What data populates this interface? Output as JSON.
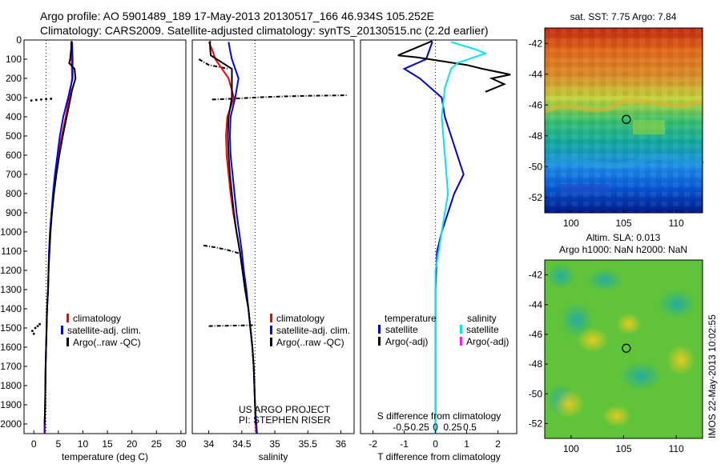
{
  "header": {
    "line1": "Argo profile: AO 5901489_189 17-May-2013 20130517_166 46.934S 105.252E",
    "line2": "Climatology: CARS2009. Satellite-adjusted climatology: synTS_20130515.nc (2.2d earlier)"
  },
  "side_stamp": "IMOS 22-May-2013 10:02:55",
  "chart_data": [
    {
      "type": "line",
      "id": "temperature-panel",
      "xlabel": "temperature (deg C)",
      "xlim": [
        -2,
        31
      ],
      "xticks": [
        0,
        5,
        10,
        15,
        20,
        25,
        30
      ],
      "ylim": [
        0,
        2050
      ],
      "yticks": [
        0,
        100,
        200,
        300,
        400,
        500,
        600,
        700,
        800,
        900,
        1000,
        1100,
        1200,
        1300,
        1400,
        1500,
        1600,
        1700,
        1800,
        1900,
        2000
      ],
      "y_reversed": true,
      "legend": [
        "climatology",
        "satellite-adj. clim.",
        "Argo(..raw -QC)"
      ],
      "reference_line_x": 2.5,
      "series": [
        {
          "name": "climatology",
          "color": "#ff0000",
          "points": [
            [
              7.6,
              10
            ],
            [
              7.7,
              100
            ],
            [
              7.8,
              200
            ],
            [
              7.2,
              300
            ],
            [
              6.5,
              400
            ],
            [
              5.7,
              500
            ],
            [
              5.0,
              600
            ],
            [
              4.5,
              700
            ],
            [
              4.0,
              800
            ],
            [
              3.6,
              900
            ],
            [
              3.3,
              1000
            ],
            [
              3.1,
              1100
            ],
            [
              3.0,
              1200
            ],
            [
              2.9,
              1300
            ],
            [
              2.7,
              1400
            ],
            [
              2.6,
              1500
            ],
            [
              2.5,
              1600
            ],
            [
              2.4,
              1700
            ],
            [
              2.35,
              1800
            ],
            [
              2.3,
              1900
            ],
            [
              2.2,
              2000
            ],
            [
              2.2,
              2050
            ]
          ]
        },
        {
          "name": "satellite-adj. clim.",
          "color": "#0000ff",
          "points": [
            [
              7.8,
              10
            ],
            [
              7.9,
              100
            ],
            [
              7.9,
              200
            ],
            [
              7.0,
              300
            ],
            [
              6.0,
              400
            ],
            [
              5.3,
              500
            ],
            [
              4.8,
              600
            ],
            [
              4.3,
              700
            ],
            [
              3.9,
              800
            ],
            [
              3.6,
              900
            ],
            [
              3.3,
              1000
            ],
            [
              3.1,
              1100
            ],
            [
              3.0,
              1200
            ],
            [
              2.9,
              1300
            ],
            [
              2.7,
              1400
            ],
            [
              2.6,
              1500
            ],
            [
              2.5,
              1600
            ],
            [
              2.4,
              1700
            ],
            [
              2.35,
              1800
            ],
            [
              2.3,
              1900
            ],
            [
              2.2,
              2000
            ],
            [
              2.2,
              2050
            ]
          ]
        },
        {
          "name": "Argo(..raw -QC)",
          "color": "#000000",
          "points": [
            [
              7.7,
              5
            ],
            [
              7.6,
              50
            ],
            [
              7.4,
              100
            ],
            [
              7.2,
              120
            ],
            [
              8.3,
              150
            ],
            [
              8.5,
              200
            ],
            [
              7.8,
              260
            ],
            [
              7.5,
              300
            ],
            [
              6.7,
              400
            ],
            [
              5.9,
              500
            ],
            [
              5.2,
              600
            ],
            [
              4.6,
              700
            ],
            [
              4.1,
              800
            ],
            [
              3.7,
              900
            ],
            [
              3.4,
              1000
            ],
            [
              3.2,
              1100
            ],
            [
              3.0,
              1200
            ],
            [
              2.9,
              1300
            ],
            [
              2.7,
              1400
            ],
            [
              2.6,
              1500
            ],
            [
              2.5,
              1600
            ],
            [
              2.4,
              1700
            ],
            [
              2.35,
              1800
            ],
            [
              2.3,
              1900
            ],
            [
              2.2,
              2000
            ]
          ]
        }
      ],
      "flagged_points": [
        [
          -0.5,
          315
        ],
        [
          0.5,
          312
        ],
        [
          1.5,
          310
        ],
        [
          2.5,
          308
        ],
        [
          3.5,
          306
        ],
        [
          -0.3,
          1515
        ],
        [
          0.3,
          1500
        ],
        [
          0.8,
          1490
        ],
        [
          1.2,
          1480
        ],
        [
          0.0,
          1530
        ]
      ]
    },
    {
      "type": "line",
      "id": "salinity-panel",
      "xlabel": "salinity",
      "xlim": [
        33.75,
        36.2
      ],
      "xticks": [
        34,
        34.5,
        35,
        35.5,
        36
      ],
      "ylim": [
        0,
        2050
      ],
      "y_reversed": true,
      "legend": [
        "climatology",
        "satellite-adj. clim.",
        "Argo(..raw -QC)"
      ],
      "reference_line_x": 34.7,
      "annotations": [
        "US ARGO PROJECT",
        "PI: STEPHEN RISER"
      ],
      "series": [
        {
          "name": "climatology",
          "color": "#ff0000",
          "points": [
            [
              34.0,
              10
            ],
            [
              34.05,
              50
            ],
            [
              34.1,
              100
            ],
            [
              34.3,
              200
            ],
            [
              34.38,
              300
            ],
            [
              34.28,
              400
            ],
            [
              34.26,
              500
            ],
            [
              34.27,
              600
            ],
            [
              34.3,
              700
            ],
            [
              34.33,
              800
            ],
            [
              34.37,
              900
            ],
            [
              34.42,
              1000
            ],
            [
              34.47,
              1100
            ],
            [
              34.51,
              1200
            ],
            [
              34.55,
              1300
            ],
            [
              34.6,
              1400
            ],
            [
              34.63,
              1500
            ],
            [
              34.66,
              1600
            ],
            [
              34.68,
              1700
            ],
            [
              34.69,
              1800
            ],
            [
              34.7,
              1900
            ],
            [
              34.71,
              2000
            ],
            [
              34.72,
              2050
            ]
          ]
        },
        {
          "name": "satellite-adj. clim.",
          "color": "#0000ff",
          "points": [
            [
              34.3,
              10
            ],
            [
              34.32,
              50
            ],
            [
              34.35,
              100
            ],
            [
              34.45,
              200
            ],
            [
              34.4,
              300
            ],
            [
              34.33,
              400
            ],
            [
              34.32,
              500
            ],
            [
              34.33,
              600
            ],
            [
              34.36,
              700
            ],
            [
              34.39,
              800
            ],
            [
              34.42,
              900
            ],
            [
              34.46,
              1000
            ],
            [
              34.5,
              1100
            ],
            [
              34.53,
              1200
            ],
            [
              34.57,
              1300
            ],
            [
              34.6,
              1400
            ],
            [
              34.63,
              1500
            ],
            [
              34.66,
              1600
            ],
            [
              34.68,
              1700
            ],
            [
              34.69,
              1800
            ],
            [
              34.7,
              1900
            ],
            [
              34.72,
              2000
            ],
            [
              34.73,
              2050
            ]
          ]
        },
        {
          "name": "Argo(..raw -QC)",
          "color": "#000000",
          "points": [
            [
              34.02,
              5
            ],
            [
              34.02,
              40
            ],
            [
              34.03,
              80
            ],
            [
              34.35,
              150
            ],
            [
              34.35,
              300
            ],
            [
              34.3,
              400
            ],
            [
              34.29,
              500
            ],
            [
              34.3,
              600
            ],
            [
              34.32,
              700
            ],
            [
              34.35,
              800
            ],
            [
              34.38,
              900
            ],
            [
              34.42,
              1000
            ],
            [
              34.47,
              1100
            ],
            [
              34.51,
              1200
            ],
            [
              34.55,
              1300
            ],
            [
              34.6,
              1400
            ],
            [
              34.63,
              1500
            ],
            [
              34.66,
              1600
            ],
            [
              34.68,
              1700
            ],
            [
              34.69,
              1800
            ],
            [
              34.7,
              1900
            ],
            [
              34.71,
              2000
            ]
          ]
        }
      ],
      "flagged_lines": [
        {
          "points": [
            [
              33.85,
              100
            ],
            [
              34.0,
              130
            ],
            [
              34.15,
              140
            ],
            [
              34.3,
              150
            ]
          ]
        },
        {
          "points": [
            [
              34.05,
              310
            ],
            [
              34.4,
              305
            ],
            [
              34.8,
              298
            ],
            [
              35.2,
              293
            ],
            [
              35.6,
              290
            ],
            [
              36.1,
              288
            ]
          ]
        },
        {
          "points": [
            [
              33.92,
              1070
            ],
            [
              34.1,
              1080
            ],
            [
              34.3,
              1095
            ],
            [
              34.45,
              1110
            ]
          ]
        },
        {
          "points": [
            [
              34.0,
              1490
            ],
            [
              34.3,
              1488
            ],
            [
              34.6,
              1486
            ],
            [
              34.7,
              1485
            ]
          ]
        }
      ]
    },
    {
      "type": "line",
      "id": "difference-panel",
      "xlabel": "T difference from climatology",
      "xlabel_top": "S difference from climatology",
      "xlim": [
        -2.4,
        2.6
      ],
      "xticks": [
        -2,
        -1,
        0,
        1,
        2
      ],
      "xtick_labels": [
        "-2",
        "-1",
        "0",
        "1",
        "2"
      ],
      "s_xticks": [
        -0.5,
        -0.25,
        0,
        0.25,
        0.5
      ],
      "s_xtick_labels": [
        "-0.5",
        "-0.25",
        "0",
        "0.25",
        "0.5"
      ],
      "ylim": [
        0,
        2050
      ],
      "y_reversed": true,
      "legend_headers": [
        "temperature",
        "salinity"
      ],
      "legend": [
        "satellite",
        "Argo(-adj)",
        "satellite",
        "Argo(-adj)"
      ],
      "reference_line_x": 0,
      "series": [
        {
          "name": "temperature satellite",
          "color": "#0000cc",
          "points": [
            [
              -0.1,
              10
            ],
            [
              -0.3,
              100
            ],
            [
              -1.0,
              150
            ],
            [
              -0.5,
              200
            ],
            [
              0.2,
              300
            ],
            [
              0.3,
              400
            ],
            [
              0.5,
              500
            ],
            [
              0.7,
              600
            ],
            [
              0.9,
              700
            ],
            [
              0.6,
              800
            ],
            [
              0.4,
              900
            ],
            [
              0.2,
              1000
            ],
            [
              0.05,
              1100
            ],
            [
              0,
              1300
            ],
            [
              0,
              1600
            ],
            [
              0,
              2050
            ]
          ]
        },
        {
          "name": "temperature Argo(-adj)",
          "color": "#000000",
          "points": [
            [
              -0.1,
              5
            ],
            [
              -1.2,
              80
            ],
            [
              -0.6,
              90
            ],
            [
              -0.2,
              100
            ],
            [
              1.0,
              130
            ],
            [
              1.5,
              150
            ],
            [
              2.4,
              180
            ],
            [
              1.8,
              200
            ],
            [
              2.2,
              230
            ],
            [
              1.6,
              270
            ]
          ]
        },
        {
          "name": "salinity satellite",
          "color": "#00e5ee",
          "points": [
            [
              0.5,
              10
            ],
            [
              1.3,
              50
            ],
            [
              1.6,
              70
            ],
            [
              0.7,
              120
            ],
            [
              0.5,
              150
            ],
            [
              0.3,
              250
            ],
            [
              0.2,
              400
            ],
            [
              0.3,
              600
            ],
            [
              0.4,
              800
            ],
            [
              0.2,
              1000
            ],
            [
              0,
              1200
            ],
            [
              0,
              1600
            ],
            [
              0,
              2050
            ]
          ]
        }
      ]
    }
  ],
  "maps": [
    {
      "id": "sst-map",
      "title": "sat. SST: 7.75 Argo: 7.84",
      "xlim": [
        97.5,
        112.5
      ],
      "ylim": [
        -53,
        -41
      ],
      "xticks": [
        100,
        105,
        110
      ],
      "yticks": [
        -42,
        -44,
        -46,
        -48,
        -50,
        -52
      ],
      "profile_location": [
        105.252,
        -46.934
      ]
    },
    {
      "id": "sla-map",
      "title_line1": "Altim. SLA: 0.013",
      "title_line2": "Argo h1000: NaN h2000: NaN",
      "xlim": [
        97.5,
        112.5
      ],
      "ylim": [
        -53,
        -41
      ],
      "xticks": [
        100,
        105,
        110
      ],
      "yticks": [
        -42,
        -44,
        -46,
        -48,
        -50,
        -52
      ],
      "profile_location": [
        105.252,
        -46.934
      ]
    }
  ]
}
